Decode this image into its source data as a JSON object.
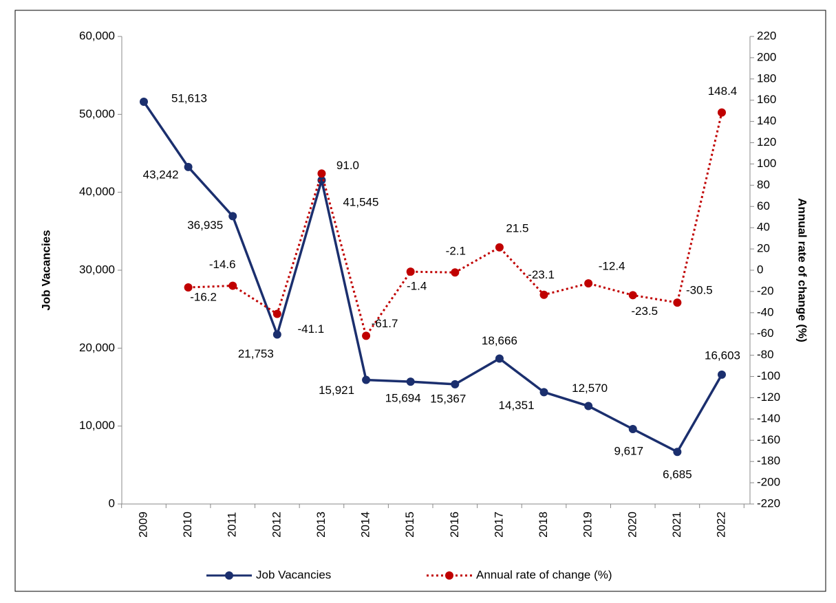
{
  "chart_data": {
    "type": "line",
    "categories": [
      "2009",
      "2010",
      "2011",
      "2012",
      "2013",
      "2014",
      "2015",
      "2016",
      "2017",
      "2018",
      "2019",
      "2020",
      "2021",
      "2022"
    ],
    "y_label": "Job Vacancies",
    "y2_label": "Annual rate of change  (%)",
    "ylim": [
      0,
      60000
    ],
    "yticks": [
      0,
      {
        "value": 10000,
        "label": "10,000"
      },
      {
        "value": 20000,
        "label": "20,000"
      },
      {
        "value": 30000,
        "label": "30,000"
      },
      {
        "value": 40000,
        "label": "40,000"
      },
      {
        "value": 50000,
        "label": "50,000"
      },
      {
        "value": 60000,
        "label": "60,000"
      }
    ],
    "y2lim": [
      -220,
      220
    ],
    "y2ticks": [
      -220,
      -200,
      -180,
      -160,
      -140,
      -120,
      -100,
      -80,
      -60,
      -40,
      -20,
      0,
      20,
      40,
      60,
      80,
      100,
      120,
      140,
      160,
      180,
      200,
      220
    ],
    "legend": "bottom",
    "series": [
      {
        "name": "Job Vacancies",
        "color": "#1b2f6e",
        "style": "solid",
        "values": [
          51613,
          43242,
          36935,
          21753,
          41545,
          15921,
          15694,
          15367,
          18666,
          14351,
          12570,
          9617,
          6685,
          16603
        ],
        "value_labels": [
          "51,613",
          "43,242",
          "36,935",
          "21,753",
          "41,545",
          "15,921",
          "15,694",
          "15,367",
          "18,666",
          "14,351",
          "12,570",
          "9,617",
          "6,685",
          "16,603"
        ]
      },
      {
        "name": "Annual rate of change  (%)",
        "color": "#c00000",
        "style": "dotted",
        "axis": "y2",
        "values": [
          null,
          -16.2,
          -14.6,
          -41.1,
          91.0,
          -61.7,
          -1.4,
          -2.1,
          21.5,
          -23.1,
          -12.4,
          -23.5,
          -30.5,
          148.4
        ],
        "value_labels": [
          null,
          "-16.2",
          "-14.6",
          "-41.1",
          "91.0",
          "-61.7",
          "-1.4",
          "-2.1",
          "21.5",
          "-23.1",
          "-12.4",
          "-23.5",
          "-30.5",
          "148.4"
        ]
      }
    ]
  }
}
